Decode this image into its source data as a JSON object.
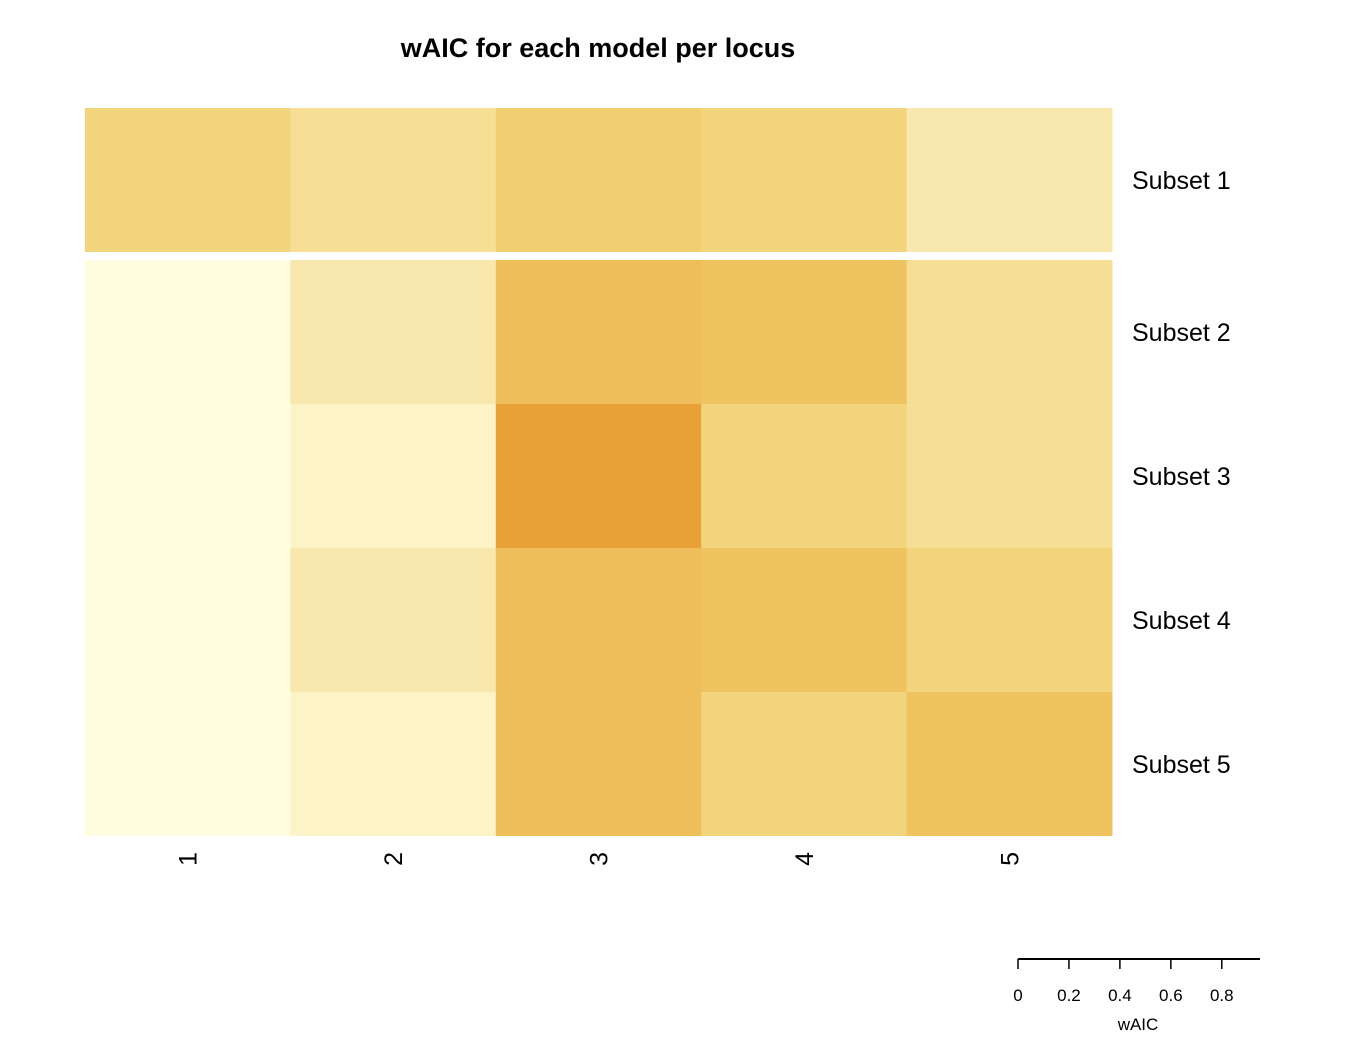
{
  "chart_data": {
    "type": "heatmap",
    "title": "wAIC for each model per locus",
    "columns": [
      "1",
      "2",
      "3",
      "4",
      "5"
    ],
    "rows": [
      "Subset 1",
      "Subset 2",
      "Subset 3",
      "Subset 4",
      "Subset 5"
    ],
    "values": [
      [
        0.4,
        0.3,
        0.45,
        0.4,
        0.2
      ],
      [
        0.0,
        0.2,
        0.6,
        0.55,
        0.3
      ],
      [
        0.0,
        0.1,
        0.85,
        0.4,
        0.3
      ],
      [
        0.0,
        0.2,
        0.6,
        0.55,
        0.4
      ],
      [
        0.0,
        0.1,
        0.6,
        0.4,
        0.55
      ]
    ],
    "color_scale": {
      "low": "#fffde0",
      "mid": "#f0cc6a",
      "high": "#e6962a",
      "range": [
        0,
        0.95
      ]
    },
    "legend": {
      "label": "wAIC",
      "ticks": [
        "0",
        "0.2",
        "0.4",
        "0.6",
        "0.8"
      ],
      "tick_values": [
        0,
        0.2,
        0.4,
        0.6,
        0.8
      ],
      "range": [
        0,
        0.95
      ],
      "placement": "bottom-right"
    }
  }
}
